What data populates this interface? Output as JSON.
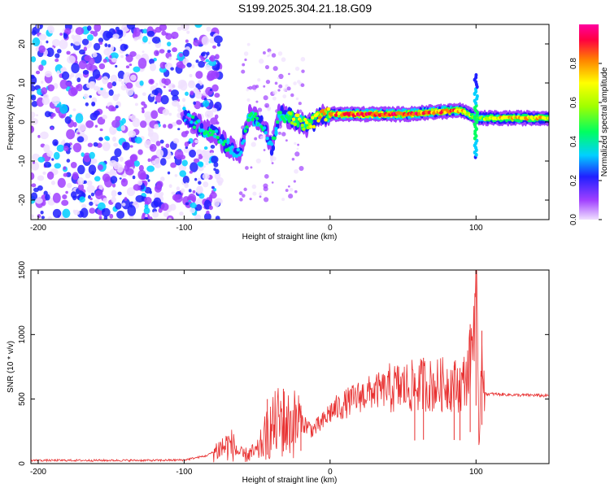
{
  "title": "S199.2025.304.21.18.G09",
  "chart_data": [
    {
      "type": "heatmap",
      "xlabel": "Height of straight line (km)",
      "ylabel": "Frequency (Hz)",
      "xlim": [
        -205,
        150
      ],
      "ylim": [
        -25,
        25
      ],
      "xticks": [
        -200,
        -100,
        0,
        100
      ],
      "xtick_labels": [
        "-200",
        "-100",
        "0",
        "100"
      ],
      "yticks": [
        -20,
        -10,
        0,
        10,
        20
      ],
      "ytick_labels": [
        "-20",
        "-10",
        "0",
        "10",
        "20"
      ],
      "colorbar": {
        "label": "Normalized spectral amplitude",
        "range": [
          0,
          1
        ],
        "ticks": [
          0.0,
          0.2,
          0.4,
          0.6,
          0.8
        ],
        "tick_labels": [
          "0.0",
          "0.2",
          "0.4",
          "0.6",
          "0.8"
        ],
        "colors": [
          "#f0e0ff",
          "#a040ff",
          "#2020ff",
          "#00d0ff",
          "#00ff60",
          "#a0ff00",
          "#ffff00",
          "#ff8000",
          "#ff0040",
          "#ff00a0"
        ]
      },
      "ridge": {
        "points": [
          {
            "x": -100,
            "f": 2,
            "a": 0.3
          },
          {
            "x": -90,
            "f": -1,
            "a": 0.45
          },
          {
            "x": -80,
            "f": -3,
            "a": 0.4
          },
          {
            "x": -70,
            "f": -6,
            "a": 0.45
          },
          {
            "x": -62,
            "f": -8,
            "a": 0.4
          },
          {
            "x": -55,
            "f": 2,
            "a": 0.5
          },
          {
            "x": -45,
            "f": -1,
            "a": 0.4
          },
          {
            "x": -40,
            "f": -7,
            "a": 0.35
          },
          {
            "x": -35,
            "f": 2,
            "a": 0.5
          },
          {
            "x": -25,
            "f": 1,
            "a": 0.6
          },
          {
            "x": -15,
            "f": -1,
            "a": 0.7
          },
          {
            "x": -5,
            "f": 2,
            "a": 0.8
          },
          {
            "x": 10,
            "f": 2,
            "a": 0.85
          },
          {
            "x": 30,
            "f": 2,
            "a": 0.9
          },
          {
            "x": 50,
            "f": 2,
            "a": 0.9
          },
          {
            "x": 70,
            "f": 2.5,
            "a": 0.85
          },
          {
            "x": 90,
            "f": 3,
            "a": 0.8
          },
          {
            "x": 100,
            "f": 1,
            "a": 0.5
          },
          {
            "x": 110,
            "f": 1,
            "a": 0.7
          },
          {
            "x": 130,
            "f": 1,
            "a": 0.75
          },
          {
            "x": 150,
            "f": 1,
            "a": 0.7
          }
        ]
      },
      "noise_region": {
        "x_range": [
          -205,
          -95
        ],
        "f_range": [
          -25,
          25
        ]
      }
    },
    {
      "type": "line",
      "xlabel": "Height of straight line (km)",
      "ylabel": "SNR (10 * v/v)",
      "xlim": [
        -205,
        150
      ],
      "ylim": [
        0,
        1500
      ],
      "xticks": [
        -200,
        -100,
        0,
        100
      ],
      "xtick_labels": [
        "-200",
        "-100",
        "0",
        "100"
      ],
      "yticks": [
        0,
        500,
        1000,
        1500
      ],
      "ytick_labels": [
        "0",
        "500",
        "1000",
        "1500"
      ],
      "color": "#e83030",
      "series": [
        {
          "name": "SNR",
          "x": [
            -205,
            -180,
            -150,
            -120,
            -100,
            -85,
            -75,
            -68,
            -60,
            -50,
            -42,
            -35,
            -28,
            -20,
            -12,
            -5,
            0,
            10,
            20,
            30,
            40,
            50,
            60,
            65,
            70,
            80,
            90,
            95,
            98,
            100,
            102,
            104,
            106,
            110,
            120,
            130,
            140,
            150
          ],
          "y": [
            25,
            25,
            25,
            25,
            28,
            60,
            120,
            150,
            60,
            90,
            250,
            330,
            300,
            330,
            260,
            320,
            400,
            460,
            520,
            560,
            580,
            590,
            600,
            620,
            600,
            620,
            600,
            720,
            1000,
            1500,
            100,
            1000,
            540,
            540,
            535,
            530,
            530,
            525
          ]
        }
      ],
      "spikes": [
        {
          "x": -43,
          "y": 500
        },
        {
          "x": -32,
          "y": 580
        },
        {
          "x": -20,
          "y": 450
        },
        {
          "x": 64,
          "y": 820
        },
        {
          "x": 58,
          "y": 700
        },
        {
          "x": 85,
          "y": 760
        },
        {
          "x": 89,
          "y": 740
        },
        {
          "x": 100,
          "y": 1500
        },
        {
          "x": 96,
          "y": 1080
        },
        {
          "x": 104,
          "y": 1030
        }
      ]
    }
  ]
}
